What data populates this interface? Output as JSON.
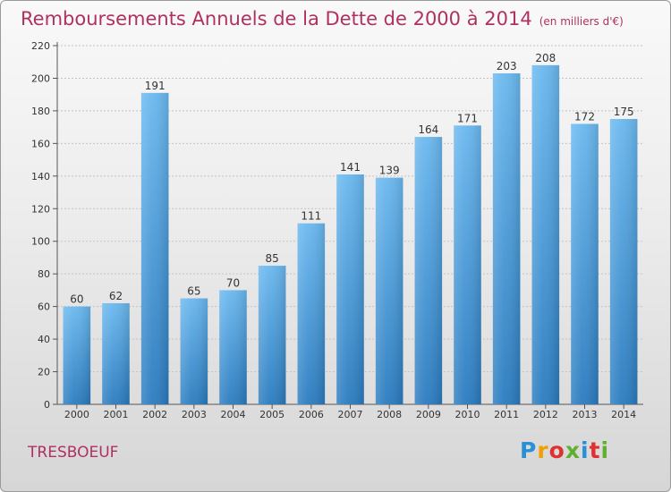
{
  "title": "Remboursements Annuels de la Dette de 2000 à 2014",
  "unit": "(en milliers d'€)",
  "commune": "TRESBOEUF",
  "logo": {
    "text": "Proxiti",
    "colors": [
      "#2b8fd6",
      "#f0a000",
      "#e03030",
      "#60b030",
      "#2b8fd6",
      "#e03030",
      "#60b030"
    ]
  },
  "colors": {
    "bar_light": "#6ab8ef",
    "bar_dark": "#2a7bbf",
    "title": "#b03060"
  },
  "chart_data": {
    "type": "bar",
    "categories": [
      "2000",
      "2001",
      "2002",
      "2003",
      "2004",
      "2005",
      "2006",
      "2007",
      "2008",
      "2009",
      "2010",
      "2011",
      "2012",
      "2013",
      "2014"
    ],
    "values": [
      60,
      62,
      191,
      65,
      70,
      85,
      111,
      141,
      139,
      164,
      171,
      203,
      208,
      172,
      175
    ],
    "ylim": [
      0,
      220
    ],
    "yticks": [
      0,
      20,
      40,
      60,
      80,
      100,
      120,
      140,
      160,
      180,
      200,
      220
    ],
    "title": "Remboursements Annuels de la Dette de 2000 à 2014",
    "xlabel": "",
    "ylabel": ""
  }
}
